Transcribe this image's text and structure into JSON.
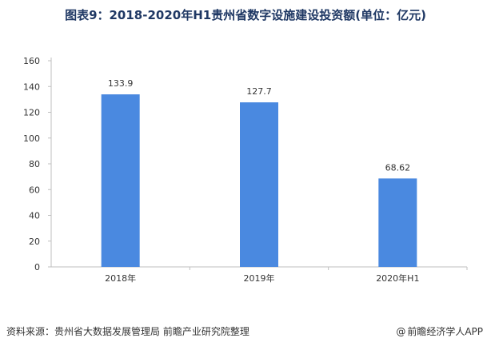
{
  "title": "图表9：2018-2020年H1贵州省数字设施建设投资额(单位：亿元)",
  "chart_data": {
    "type": "bar",
    "categories": [
      "2018年",
      "2019年",
      "2020年H1"
    ],
    "values": [
      133.9,
      127.7,
      68.62
    ],
    "value_labels": [
      "133.9",
      "127.7",
      "68.62"
    ],
    "ylim": [
      0,
      160
    ],
    "yticks": [
      0,
      20,
      40,
      60,
      80,
      100,
      120,
      140,
      160
    ],
    "grid": false,
    "bar_color": "#4a89e0"
  },
  "footer": {
    "source": "资料来源：贵州省大数据发展管理局 前瞻产业研究院整理",
    "at_symbol": "@",
    "brand": "前瞻经济学人APP"
  }
}
